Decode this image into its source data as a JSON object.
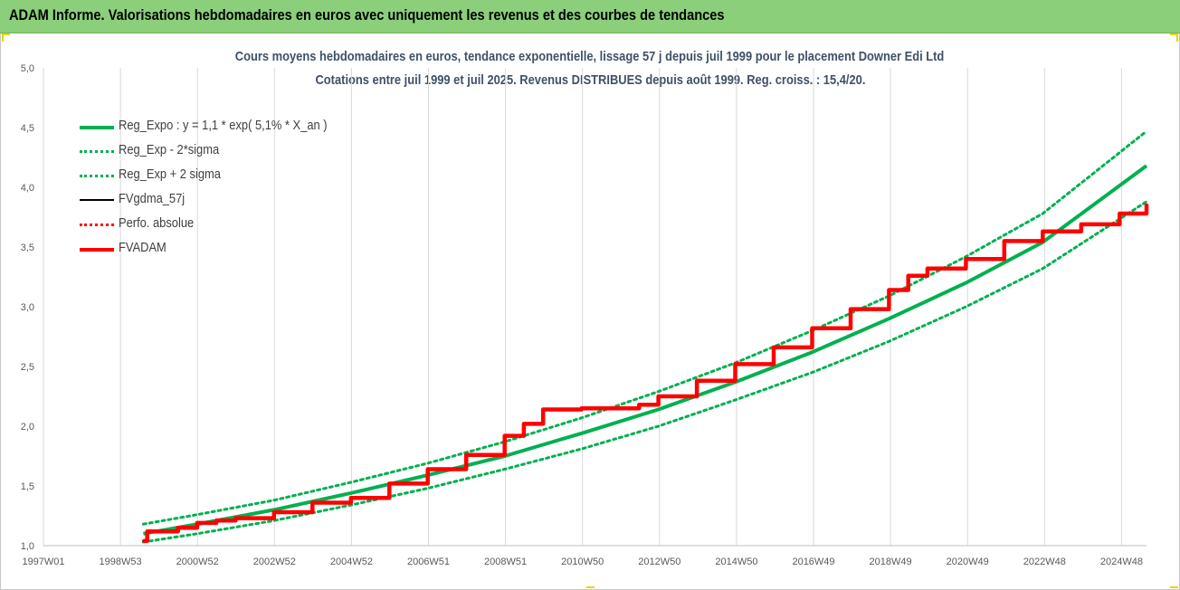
{
  "banner": {
    "title": "ADAM Informe. Valorisations hebdomadaires en euros avec uniquement les revenus et des courbes de tendances"
  },
  "colors": {
    "banner_bg": "#8bcf7a",
    "title_text": "#3f5167",
    "reg_expo": "#00b050",
    "fv_adam": "#ff0000",
    "fv_gdma": "#000000",
    "grid": "#d9d9d9"
  },
  "chart_data": {
    "type": "line",
    "title": "Cours moyens hebdomadaires en euros, tendance exponentielle, lissage 57 j depuis juil 1999 pour le placement Downer Edi Ltd",
    "subtitle": "Cotations entre juil 1999 et juil 2025. Revenus DISTRIBUES depuis août 1999. Reg. croiss. : 15,4/20.",
    "xlabel": "",
    "ylabel": "",
    "x_tick_labels": [
      "1997W01",
      "1998W53",
      "2000W52",
      "2002W52",
      "2004W52",
      "2006W51",
      "2008W51",
      "2010W50",
      "2012W50",
      "2014W50",
      "2016W49",
      "2018W49",
      "2020W49",
      "2022W48",
      "2024W48"
    ],
    "x_range": [
      1997.0,
      2025.7
    ],
    "y_ticks": [
      "1,0",
      "1,5",
      "2,0",
      "2,5",
      "3,0",
      "3,5",
      "4,0",
      "4,5",
      "5,0"
    ],
    "ylim": [
      1.0,
      5.0
    ],
    "grid": {
      "vertical": true,
      "horizontal": false
    },
    "legend_position": "top-left",
    "series": [
      {
        "name": "Reg_Expo : y = 1,1 * exp( 5,1% *  X_an )",
        "color": "#00b050",
        "style": "solid",
        "x": [
          1999.6,
          2001,
          2003,
          2005,
          2007,
          2009,
          2011,
          2013,
          2015,
          2017,
          2019,
          2021,
          2023,
          2025.7
        ],
        "values": [
          1.1,
          1.18,
          1.3,
          1.44,
          1.59,
          1.75,
          1.94,
          2.14,
          2.37,
          2.62,
          2.9,
          3.2,
          3.54,
          4.18
        ]
      },
      {
        "name": "Reg_Exp - 2*sigma",
        "color": "#00b050",
        "style": "dotted",
        "x": [
          1999.6,
          2001,
          2003,
          2005,
          2007,
          2009,
          2011,
          2013,
          2015,
          2017,
          2019,
          2021,
          2023,
          2025.7
        ],
        "values": [
          1.03,
          1.1,
          1.21,
          1.34,
          1.48,
          1.64,
          1.81,
          2.0,
          2.22,
          2.45,
          2.71,
          3.0,
          3.32,
          3.88
        ]
      },
      {
        "name": "Reg_Exp + 2 sigma",
        "color": "#00b050",
        "style": "dotted",
        "x": [
          1999.6,
          2001,
          2003,
          2005,
          2007,
          2009,
          2011,
          2013,
          2015,
          2017,
          2019,
          2021,
          2023,
          2025.7
        ],
        "values": [
          1.18,
          1.26,
          1.38,
          1.53,
          1.69,
          1.87,
          2.07,
          2.29,
          2.53,
          2.8,
          3.09,
          3.42,
          3.78,
          4.47
        ]
      },
      {
        "name": "FVgdma_57j",
        "color": "#000000",
        "style": "solid",
        "x": [
          1999.6,
          1999.7,
          2000.5,
          2001,
          2001.5,
          2002,
          2003,
          2004,
          2005,
          2006,
          2007,
          2008,
          2009,
          2009.5,
          2010,
          2011,
          2012,
          2012.5,
          2013,
          2014,
          2015,
          2016,
          2017,
          2018,
          2019,
          2019.5,
          2020,
          2021,
          2022,
          2023,
          2024,
          2025,
          2025.7
        ],
        "values": [
          1.04,
          1.12,
          1.15,
          1.19,
          1.21,
          1.23,
          1.28,
          1.36,
          1.4,
          1.52,
          1.64,
          1.76,
          1.92,
          2.02,
          2.14,
          2.15,
          2.15,
          2.18,
          2.25,
          2.38,
          2.52,
          2.66,
          2.82,
          2.98,
          3.14,
          3.26,
          3.32,
          3.4,
          3.55,
          3.63,
          3.69,
          3.78,
          3.86
        ]
      },
      {
        "name": "Perfo. absolue",
        "color": "#ff0000",
        "style": "dotted",
        "x": [
          1999.6,
          1999.7,
          2000.5,
          2001,
          2001.5,
          2002,
          2003,
          2004,
          2005,
          2006,
          2007,
          2008,
          2009,
          2009.5,
          2010,
          2011,
          2012,
          2012.5,
          2013,
          2014,
          2015,
          2016,
          2017,
          2018,
          2019,
          2019.5,
          2020,
          2021,
          2022,
          2023,
          2024,
          2025,
          2025.7
        ],
        "values": [
          1.04,
          1.12,
          1.15,
          1.19,
          1.21,
          1.23,
          1.28,
          1.36,
          1.4,
          1.52,
          1.64,
          1.76,
          1.92,
          2.02,
          2.14,
          2.15,
          2.15,
          2.18,
          2.25,
          2.38,
          2.52,
          2.66,
          2.82,
          2.98,
          3.14,
          3.26,
          3.32,
          3.4,
          3.55,
          3.63,
          3.69,
          3.78,
          3.86
        ]
      },
      {
        "name": "FVADAM",
        "color": "#ff0000",
        "style": "solid",
        "x": [
          1999.6,
          1999.7,
          2000.5,
          2001,
          2001.5,
          2002,
          2003,
          2004,
          2005,
          2006,
          2007,
          2008,
          2009,
          2009.5,
          2010,
          2011,
          2012,
          2012.5,
          2013,
          2014,
          2015,
          2016,
          2017,
          2018,
          2019,
          2019.5,
          2020,
          2021,
          2022,
          2023,
          2024,
          2025,
          2025.7
        ],
        "values": [
          1.04,
          1.12,
          1.15,
          1.19,
          1.21,
          1.23,
          1.28,
          1.36,
          1.4,
          1.52,
          1.64,
          1.76,
          1.92,
          2.02,
          2.14,
          2.15,
          2.15,
          2.18,
          2.25,
          2.38,
          2.52,
          2.66,
          2.82,
          2.98,
          3.14,
          3.26,
          3.32,
          3.4,
          3.55,
          3.63,
          3.69,
          3.78,
          3.86
        ]
      }
    ]
  }
}
